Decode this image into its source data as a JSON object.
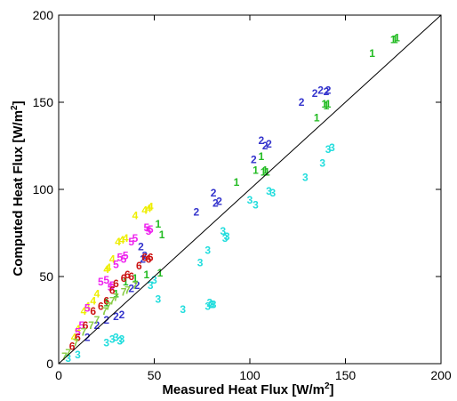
{
  "chart_data": {
    "type": "scatter",
    "xlim": [
      0,
      200
    ],
    "ylim": [
      0,
      200
    ],
    "x_ticks": [
      "0",
      "50",
      "100",
      "150",
      "200"
    ],
    "y_ticks": [
      "0",
      "50",
      "100",
      "150",
      "200"
    ],
    "xlabel": {
      "main": "Measured Heat Flux [W/m",
      "sup": "2",
      "tail": "]"
    },
    "ylabel": {
      "main": "Computed Heat Flux [W/m",
      "sup": "2",
      "tail": "]"
    },
    "grid": false,
    "reference_line": {
      "from": [
        0,
        0
      ],
      "to": [
        200,
        200
      ],
      "color": "#000000"
    },
    "series": [
      {
        "marker": "1",
        "color": "#22bb22",
        "points": [
          [
            177,
            187
          ],
          [
            176,
            186
          ],
          [
            175,
            186
          ],
          [
            164,
            178
          ],
          [
            140,
            148
          ],
          [
            139,
            149
          ],
          [
            141,
            149
          ],
          [
            135,
            141
          ],
          [
            108,
            111
          ],
          [
            107,
            110
          ],
          [
            109,
            110
          ],
          [
            103,
            111
          ],
          [
            106,
            119
          ],
          [
            93,
            104
          ],
          [
            52,
            80
          ],
          [
            54,
            74
          ],
          [
            53,
            52
          ],
          [
            46,
            51
          ],
          [
            40,
            49
          ],
          [
            35,
            47
          ],
          [
            30,
            40
          ],
          [
            25,
            35
          ]
        ]
      },
      {
        "marker": "2",
        "color": "#3333cc",
        "points": [
          [
            141,
            157
          ],
          [
            140,
            156
          ],
          [
            137,
            157
          ],
          [
            134,
            155
          ],
          [
            127,
            150
          ],
          [
            110,
            126
          ],
          [
            108,
            125
          ],
          [
            106,
            128
          ],
          [
            102,
            117
          ],
          [
            84,
            93
          ],
          [
            82,
            92
          ],
          [
            81,
            98
          ],
          [
            72,
            87
          ],
          [
            45,
            62
          ],
          [
            44,
            60
          ],
          [
            43,
            67
          ],
          [
            41,
            45
          ],
          [
            38,
            43
          ],
          [
            33,
            28
          ],
          [
            30,
            27
          ],
          [
            25,
            25
          ],
          [
            20,
            22
          ],
          [
            15,
            15
          ]
        ]
      },
      {
        "marker": "3",
        "color": "#22dddd",
        "points": [
          [
            143,
            124
          ],
          [
            141,
            123
          ],
          [
            138,
            115
          ],
          [
            129,
            107
          ],
          [
            112,
            98
          ],
          [
            110,
            99
          ],
          [
            100,
            94
          ],
          [
            103,
            91
          ],
          [
            88,
            73
          ],
          [
            87,
            72
          ],
          [
            86,
            76
          ],
          [
            78,
            65
          ],
          [
            74,
            58
          ],
          [
            81,
            34
          ],
          [
            79,
            35
          ],
          [
            80,
            34
          ],
          [
            78,
            33
          ],
          [
            65,
            31
          ],
          [
            52,
            37
          ],
          [
            50,
            48
          ],
          [
            48,
            45
          ],
          [
            33,
            14
          ],
          [
            32,
            13
          ],
          [
            30,
            15
          ],
          [
            28,
            14
          ],
          [
            25,
            12
          ],
          [
            10,
            5
          ],
          [
            5,
            3
          ]
        ]
      },
      {
        "marker": "4",
        "color": "#eeee00",
        "points": [
          [
            48,
            90
          ],
          [
            47,
            89
          ],
          [
            45,
            88
          ],
          [
            40,
            85
          ],
          [
            35,
            72
          ],
          [
            33,
            71
          ],
          [
            31,
            70
          ],
          [
            28,
            60
          ],
          [
            26,
            55
          ],
          [
            25,
            54
          ],
          [
            20,
            40
          ],
          [
            18,
            36
          ],
          [
            15,
            33
          ],
          [
            13,
            30
          ],
          [
            10,
            20
          ],
          [
            8,
            15
          ]
        ]
      },
      {
        "marker": "5",
        "color": "#ee22ee",
        "points": [
          [
            48,
            77
          ],
          [
            47,
            76
          ],
          [
            46,
            78
          ],
          [
            40,
            72
          ],
          [
            38,
            70
          ],
          [
            35,
            62
          ],
          [
            34,
            60
          ],
          [
            32,
            61
          ],
          [
            30,
            57
          ],
          [
            28,
            45
          ],
          [
            27,
            44
          ],
          [
            25,
            48
          ],
          [
            22,
            47
          ],
          [
            15,
            32
          ],
          [
            12,
            22
          ],
          [
            10,
            18
          ]
        ]
      },
      {
        "marker": "6",
        "color": "#cc1111",
        "points": [
          [
            48,
            61
          ],
          [
            47,
            60
          ],
          [
            45,
            61
          ],
          [
            42,
            56
          ],
          [
            38,
            50
          ],
          [
            36,
            51
          ],
          [
            34,
            49
          ],
          [
            30,
            46
          ],
          [
            28,
            42
          ],
          [
            25,
            36
          ],
          [
            22,
            33
          ],
          [
            18,
            30
          ],
          [
            14,
            22
          ],
          [
            10,
            15
          ],
          [
            7,
            10
          ]
        ]
      },
      {
        "marker": "7",
        "color": "#88cc44",
        "points": [
          [
            40,
            45
          ],
          [
            36,
            42
          ],
          [
            34,
            41
          ],
          [
            30,
            38
          ],
          [
            28,
            36
          ],
          [
            26,
            33
          ],
          [
            24,
            30
          ],
          [
            20,
            25
          ],
          [
            17,
            22
          ],
          [
            13,
            18
          ],
          [
            9,
            12
          ],
          [
            5,
            6
          ],
          [
            3,
            4
          ]
        ]
      }
    ]
  }
}
